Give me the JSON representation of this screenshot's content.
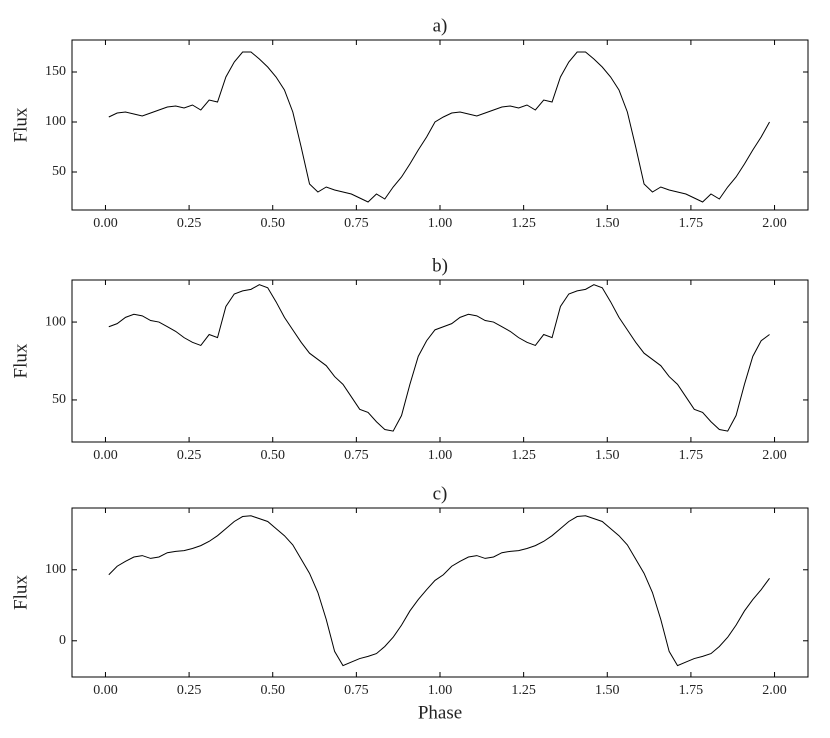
{
  "chart_data": [
    {
      "type": "line",
      "title": "a)",
      "ylabel": "Flux",
      "color": "#000000",
      "x": [
        0.01,
        0.035,
        0.06,
        0.085,
        0.11,
        0.135,
        0.16,
        0.185,
        0.21,
        0.235,
        0.26,
        0.285,
        0.31,
        0.335,
        0.36,
        0.385,
        0.41,
        0.435,
        0.46,
        0.485,
        0.51,
        0.535,
        0.56,
        0.585,
        0.61,
        0.635,
        0.66,
        0.685,
        0.71,
        0.735,
        0.76,
        0.785,
        0.81,
        0.835,
        0.86,
        0.885,
        0.91,
        0.935,
        0.96,
        0.985,
        1.01,
        1.035,
        1.06,
        1.085,
        1.11,
        1.135,
        1.16,
        1.185,
        1.21,
        1.235,
        1.26,
        1.285,
        1.31,
        1.335,
        1.36,
        1.385,
        1.41,
        1.435,
        1.46,
        1.485,
        1.51,
        1.535,
        1.56,
        1.585,
        1.61,
        1.635,
        1.66,
        1.685,
        1.71,
        1.735,
        1.76,
        1.785,
        1.81,
        1.835,
        1.86,
        1.885,
        1.91,
        1.935,
        1.96,
        1.985
      ],
      "values": [
        105,
        109,
        110,
        108,
        106,
        109,
        112,
        115,
        116,
        114,
        117,
        112,
        122,
        120,
        145,
        160,
        170,
        170,
        163,
        155,
        145,
        132,
        110,
        75,
        38,
        30,
        35,
        32,
        30,
        28,
        24,
        20,
        28,
        23,
        35,
        45,
        58,
        72,
        85,
        100,
        105,
        109,
        110,
        108,
        106,
        109,
        112,
        115,
        116,
        114,
        117,
        112,
        122,
        120,
        145,
        160,
        170,
        170,
        163,
        155,
        145,
        132,
        110,
        75,
        38,
        30,
        35,
        32,
        30,
        28,
        24,
        20,
        28,
        23,
        35,
        45,
        58,
        72,
        85,
        100
      ],
      "xlim": [
        -0.1,
        2.1
      ],
      "ylim": [
        12,
        182
      ],
      "xticks": [
        {
          "value": 0,
          "label": "0.00"
        },
        {
          "value": 0.25,
          "label": "0.25"
        },
        {
          "value": 0.5,
          "label": "0.50"
        },
        {
          "value": 0.75,
          "label": "0.75"
        },
        {
          "value": 1,
          "label": "1.00"
        },
        {
          "value": 1.25,
          "label": "1.25"
        },
        {
          "value": 1.5,
          "label": "1.50"
        },
        {
          "value": 1.75,
          "label": "1.75"
        },
        {
          "value": 2,
          "label": "2.00"
        }
      ],
      "yticks": [
        50,
        100,
        150
      ]
    },
    {
      "type": "line",
      "title": "b)",
      "ylabel": "Flux",
      "color": "#000000",
      "x": [
        0.01,
        0.035,
        0.06,
        0.085,
        0.11,
        0.135,
        0.16,
        0.185,
        0.21,
        0.235,
        0.26,
        0.285,
        0.31,
        0.335,
        0.36,
        0.385,
        0.41,
        0.435,
        0.46,
        0.485,
        0.51,
        0.535,
        0.56,
        0.585,
        0.61,
        0.635,
        0.66,
        0.685,
        0.71,
        0.735,
        0.76,
        0.785,
        0.81,
        0.835,
        0.86,
        0.885,
        0.91,
        0.935,
        0.96,
        0.985,
        1.01,
        1.035,
        1.06,
        1.085,
        1.11,
        1.135,
        1.16,
        1.185,
        1.21,
        1.235,
        1.26,
        1.285,
        1.31,
        1.335,
        1.36,
        1.385,
        1.41,
        1.435,
        1.46,
        1.485,
        1.51,
        1.535,
        1.56,
        1.585,
        1.61,
        1.635,
        1.66,
        1.685,
        1.71,
        1.735,
        1.76,
        1.785,
        1.81,
        1.835,
        1.86,
        1.885,
        1.91,
        1.935,
        1.96,
        1.985
      ],
      "values": [
        97,
        99,
        103,
        105,
        104,
        101,
        100,
        97,
        94,
        90,
        87,
        85,
        92,
        90,
        110,
        118,
        120,
        121,
        124,
        122,
        113,
        103,
        95,
        87,
        80,
        76,
        72,
        65,
        60,
        52,
        44,
        42,
        36,
        31,
        30,
        40,
        60,
        78,
        88,
        95,
        97,
        99,
        103,
        105,
        104,
        101,
        100,
        97,
        94,
        90,
        87,
        85,
        92,
        90,
        110,
        118,
        120,
        121,
        124,
        122,
        113,
        103,
        95,
        87,
        80,
        76,
        72,
        65,
        60,
        52,
        44,
        42,
        36,
        31,
        30,
        40,
        60,
        78,
        88,
        92
      ],
      "xlim": [
        -0.1,
        2.1
      ],
      "ylim": [
        23,
        127
      ],
      "xticks": [
        {
          "value": 0,
          "label": "0.00"
        },
        {
          "value": 0.25,
          "label": "0.25"
        },
        {
          "value": 0.5,
          "label": "0.50"
        },
        {
          "value": 0.75,
          "label": "0.75"
        },
        {
          "value": 1,
          "label": "1.00"
        },
        {
          "value": 1.25,
          "label": "1.25"
        },
        {
          "value": 1.5,
          "label": "1.50"
        },
        {
          "value": 1.75,
          "label": "1.75"
        },
        {
          "value": 2,
          "label": "2.00"
        }
      ],
      "yticks": [
        50,
        100
      ]
    },
    {
      "type": "line",
      "title": "c)",
      "ylabel": "Flux",
      "xlabel": "Phase",
      "color": "#000000",
      "x": [
        0.01,
        0.035,
        0.06,
        0.085,
        0.11,
        0.135,
        0.16,
        0.185,
        0.21,
        0.235,
        0.26,
        0.285,
        0.31,
        0.335,
        0.36,
        0.385,
        0.41,
        0.435,
        0.46,
        0.485,
        0.51,
        0.535,
        0.56,
        0.585,
        0.61,
        0.635,
        0.66,
        0.685,
        0.71,
        0.735,
        0.76,
        0.785,
        0.81,
        0.835,
        0.86,
        0.885,
        0.91,
        0.935,
        0.96,
        0.985,
        1.01,
        1.035,
        1.06,
        1.085,
        1.11,
        1.135,
        1.16,
        1.185,
        1.21,
        1.235,
        1.26,
        1.285,
        1.31,
        1.335,
        1.36,
        1.385,
        1.41,
        1.435,
        1.46,
        1.485,
        1.51,
        1.535,
        1.56,
        1.585,
        1.61,
        1.635,
        1.66,
        1.685,
        1.71,
        1.735,
        1.76,
        1.785,
        1.81,
        1.835,
        1.86,
        1.885,
        1.91,
        1.935,
        1.96,
        1.985
      ],
      "values": [
        93,
        105,
        112,
        118,
        120,
        116,
        118,
        124,
        126,
        127,
        130,
        134,
        140,
        148,
        158,
        168,
        175,
        176,
        172,
        168,
        158,
        148,
        135,
        115,
        95,
        68,
        30,
        -15,
        -35,
        -30,
        -25,
        -22,
        -18,
        -8,
        5,
        22,
        42,
        58,
        72,
        85,
        93,
        105,
        112,
        118,
        120,
        116,
        118,
        124,
        126,
        127,
        130,
        134,
        140,
        148,
        158,
        168,
        175,
        176,
        172,
        168,
        158,
        148,
        135,
        115,
        95,
        68,
        30,
        -15,
        -35,
        -30,
        -25,
        -22,
        -18,
        -8,
        5,
        22,
        42,
        58,
        72,
        88
      ],
      "xlim": [
        -0.1,
        2.1
      ],
      "ylim": [
        -51,
        187
      ],
      "xticks": [
        {
          "value": 0,
          "label": "0.00"
        },
        {
          "value": 0.25,
          "label": "0.25"
        },
        {
          "value": 0.5,
          "label": "0.50"
        },
        {
          "value": 0.75,
          "label": "0.75"
        },
        {
          "value": 1,
          "label": "1.00"
        },
        {
          "value": 1.25,
          "label": "1.25"
        },
        {
          "value": 1.5,
          "label": "1.50"
        },
        {
          "value": 1.75,
          "label": "1.75"
        },
        {
          "value": 2,
          "label": "2.00"
        }
      ],
      "yticks": [
        0,
        100
      ]
    }
  ]
}
